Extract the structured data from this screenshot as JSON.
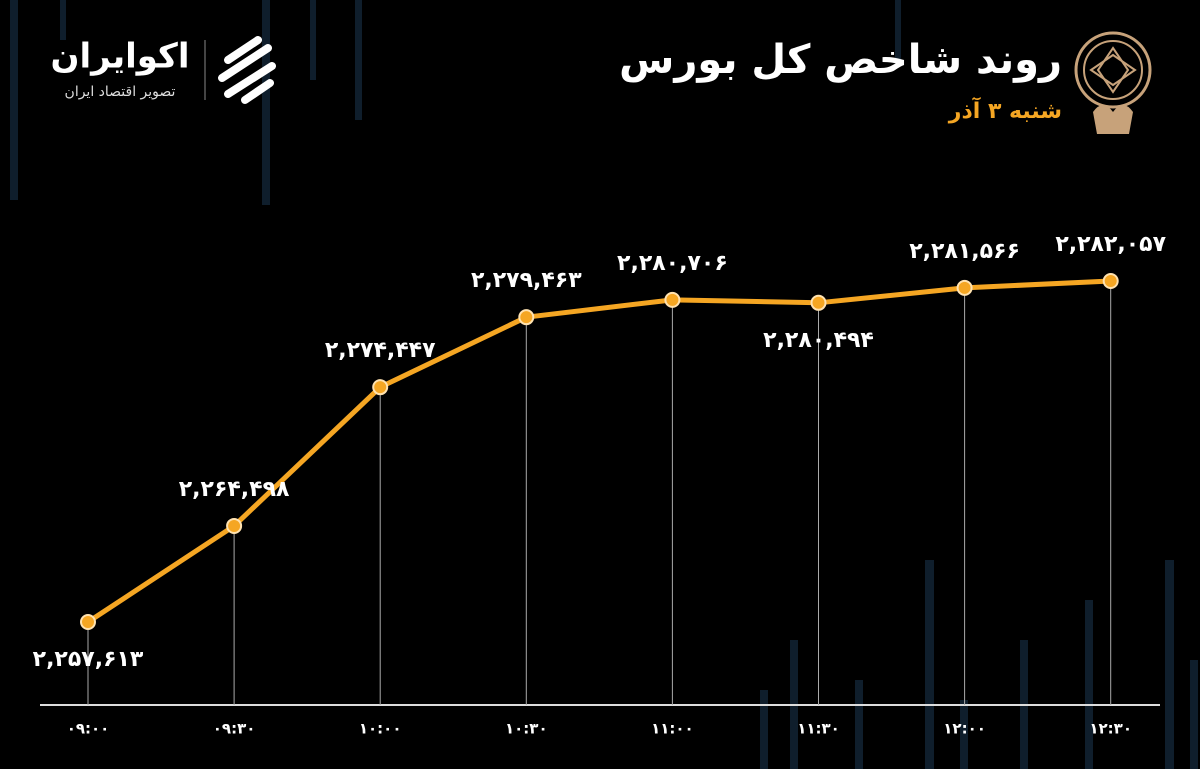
{
  "logo": {
    "name": "اکوایران",
    "tagline": "تصویر اقتصاد ایران"
  },
  "chart_data": {
    "type": "line",
    "title": "روند شاخص کل بورس",
    "subtitle": "شنبه ۳ آذر",
    "categories": [
      "۰۹:۰۰",
      "۰۹:۳۰",
      "۱۰:۰۰",
      "۱۰:۳۰",
      "۱۱:۰۰",
      "۱۱:۳۰",
      "۱۲:۰۰",
      "۱۲:۳۰"
    ],
    "values": [
      2257613,
      2264498,
      2274447,
      2279463,
      2280706,
      2280494,
      2281566,
      2282057
    ],
    "value_labels": [
      "۲,۲۵۷,۶۱۳",
      "۲,۲۶۴,۴۹۸",
      "۲,۲۷۴,۴۴۷",
      "۲,۲۷۹,۴۶۳",
      "۲,۲۸۰,۷۰۶",
      "۲,۲۸۰,۴۹۴",
      "۲,۲۸۱,۵۶۶",
      "۲,۲۸۲,۰۵۷"
    ],
    "color": "#f5a623"
  }
}
